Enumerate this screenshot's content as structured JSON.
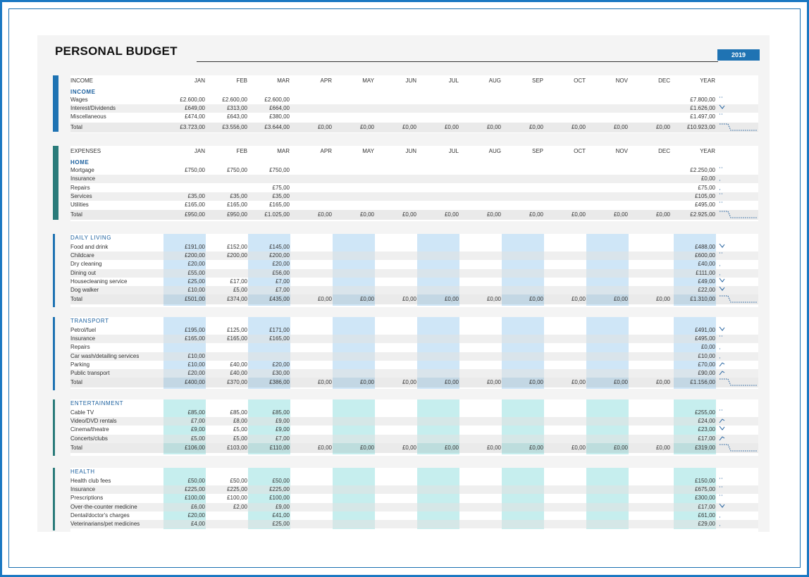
{
  "title": "PERSONAL BUDGET",
  "year_badge": "2019",
  "months": [
    "JAN",
    "FEB",
    "MAR",
    "APR",
    "MAY",
    "JUN",
    "JUL",
    "AUG",
    "SEP",
    "OCT",
    "NOV",
    "DEC"
  ],
  "year_label": "YEAR",
  "colors": {
    "income_bar": "#1f73b3",
    "expenses_bar": "#2a7b7a",
    "blue_band": "#cfe6f7",
    "blue_total": "#9fd0ef",
    "teal_band": "#c6eeee",
    "teal_total": "#8fdfdf"
  },
  "income": {
    "header": "INCOME",
    "subheader": "INCOME",
    "rows": [
      {
        "label": "Wages",
        "values": [
          "£2.600,00",
          "£2.600,00",
          "£2.600,00",
          "",
          "",
          "",
          "",
          "",
          "",
          "",
          "",
          ""
        ],
        "year": "£7.800,00"
      },
      {
        "label": "Interest/Dividends",
        "values": [
          "£649,00",
          "£313,00",
          "£664,00",
          "",
          "",
          "",
          "",
          "",
          "",
          "",
          "",
          ""
        ],
        "year": "£1.626,00"
      },
      {
        "label": "Miscellaneous",
        "values": [
          "£474,00",
          "£643,00",
          "£380,00",
          "",
          "",
          "",
          "",
          "",
          "",
          "",
          "",
          ""
        ],
        "year": "£1.497,00"
      }
    ],
    "total": {
      "label": "Total",
      "values": [
        "£3.723,00",
        "£3.556,00",
        "£3.644,00",
        "£0,00",
        "£0,00",
        "£0,00",
        "£0,00",
        "£0,00",
        "£0,00",
        "£0,00",
        "£0,00",
        "£0,00"
      ],
      "year": "£10.923,00"
    }
  },
  "expenses": {
    "header": "EXPENSES",
    "subheader": "HOME",
    "rows": [
      {
        "label": "Mortgage",
        "values": [
          "£750,00",
          "£750,00",
          "£750,00",
          "",
          "",
          "",
          "",
          "",
          "",
          "",
          "",
          ""
        ],
        "year": "£2.250,00"
      },
      {
        "label": "Insurance",
        "values": [
          "",
          "",
          "",
          "",
          "",
          "",
          "",
          "",
          "",
          "",
          "",
          ""
        ],
        "year": "£0,00"
      },
      {
        "label": "Repairs",
        "values": [
          "",
          "",
          "£75,00",
          "",
          "",
          "",
          "",
          "",
          "",
          "",
          "",
          ""
        ],
        "year": "£75,00"
      },
      {
        "label": "Services",
        "values": [
          "£35,00",
          "£35,00",
          "£35,00",
          "",
          "",
          "",
          "",
          "",
          "",
          "",
          "",
          ""
        ],
        "year": "£105,00"
      },
      {
        "label": "Utilities",
        "values": [
          "£165,00",
          "£165,00",
          "£165,00",
          "",
          "",
          "",
          "",
          "",
          "",
          "",
          "",
          ""
        ],
        "year": "£495,00"
      }
    ],
    "total": {
      "label": "Total",
      "values": [
        "£950,00",
        "£950,00",
        "£1.025,00",
        "£0,00",
        "£0,00",
        "£0,00",
        "£0,00",
        "£0,00",
        "£0,00",
        "£0,00",
        "£0,00",
        "£0,00"
      ],
      "year": "£2.925,00"
    }
  },
  "daily_living": {
    "title": "DAILY LIVING",
    "rows": [
      {
        "label": "Food and drink",
        "values": [
          "£191,00",
          "£152,00",
          "£145,00",
          "",
          "",
          "",
          "",
          "",
          "",
          "",
          "",
          ""
        ],
        "year": "£488,00"
      },
      {
        "label": "Childcare",
        "values": [
          "£200,00",
          "£200,00",
          "£200,00",
          "",
          "",
          "",
          "",
          "",
          "",
          "",
          "",
          ""
        ],
        "year": "£600,00"
      },
      {
        "label": "Dry cleaning",
        "values": [
          "£20,00",
          "",
          "£20,00",
          "",
          "",
          "",
          "",
          "",
          "",
          "",
          "",
          ""
        ],
        "year": "£40,00"
      },
      {
        "label": "Dining out",
        "values": [
          "£55,00",
          "",
          "£56,00",
          "",
          "",
          "",
          "",
          "",
          "",
          "",
          "",
          ""
        ],
        "year": "£111,00"
      },
      {
        "label": "Housecleaning service",
        "values": [
          "£25,00",
          "£17,00",
          "£7,00",
          "",
          "",
          "",
          "",
          "",
          "",
          "",
          "",
          ""
        ],
        "year": "£49,00"
      },
      {
        "label": "Dog walker",
        "values": [
          "£10,00",
          "£5,00",
          "£7,00",
          "",
          "",
          "",
          "",
          "",
          "",
          "",
          "",
          ""
        ],
        "year": "£22,00"
      }
    ],
    "total": {
      "label": "Total",
      "values": [
        "£501,00",
        "£374,00",
        "£435,00",
        "£0,00",
        "£0,00",
        "£0,00",
        "£0,00",
        "£0,00",
        "£0,00",
        "£0,00",
        "£0,00",
        "£0,00"
      ],
      "year": "£1.310,00"
    }
  },
  "transport": {
    "title": "TRANSPORT",
    "rows": [
      {
        "label": "Petrol/fuel",
        "values": [
          "£195,00",
          "£125,00",
          "£171,00",
          "",
          "",
          "",
          "",
          "",
          "",
          "",
          "",
          ""
        ],
        "year": "£491,00"
      },
      {
        "label": "Insurance",
        "values": [
          "£165,00",
          "£165,00",
          "£165,00",
          "",
          "",
          "",
          "",
          "",
          "",
          "",
          "",
          ""
        ],
        "year": "£495,00"
      },
      {
        "label": "Repairs",
        "values": [
          "",
          "",
          "",
          "",
          "",
          "",
          "",
          "",
          "",
          "",
          "",
          ""
        ],
        "year": "£0,00"
      },
      {
        "label": "Car wash/detailing services",
        "values": [
          "£10,00",
          "",
          "",
          "",
          "",
          "",
          "",
          "",
          "",
          "",
          "",
          ""
        ],
        "year": "£10,00"
      },
      {
        "label": "Parking",
        "values": [
          "£10,00",
          "£40,00",
          "£20,00",
          "",
          "",
          "",
          "",
          "",
          "",
          "",
          "",
          ""
        ],
        "year": "£70,00"
      },
      {
        "label": "Public transport",
        "values": [
          "£20,00",
          "£40,00",
          "£30,00",
          "",
          "",
          "",
          "",
          "",
          "",
          "",
          "",
          ""
        ],
        "year": "£90,00"
      }
    ],
    "total": {
      "label": "Total",
      "values": [
        "£400,00",
        "£370,00",
        "£386,00",
        "£0,00",
        "£0,00",
        "£0,00",
        "£0,00",
        "£0,00",
        "£0,00",
        "£0,00",
        "£0,00",
        "£0,00"
      ],
      "year": "£1.156,00"
    }
  },
  "entertainment": {
    "title": "ENTERTAINMENT",
    "rows": [
      {
        "label": "Cable TV",
        "values": [
          "£85,00",
          "£85,00",
          "£85,00",
          "",
          "",
          "",
          "",
          "",
          "",
          "",
          "",
          ""
        ],
        "year": "£255,00"
      },
      {
        "label": "Video/DVD rentals",
        "values": [
          "£7,00",
          "£8,00",
          "£9,00",
          "",
          "",
          "",
          "",
          "",
          "",
          "",
          "",
          ""
        ],
        "year": "£24,00"
      },
      {
        "label": "Cinema/theatre",
        "values": [
          "£9,00",
          "£5,00",
          "£9,00",
          "",
          "",
          "",
          "",
          "",
          "",
          "",
          "",
          ""
        ],
        "year": "£23,00"
      },
      {
        "label": "Concerts/clubs",
        "values": [
          "£5,00",
          "£5,00",
          "£7,00",
          "",
          "",
          "",
          "",
          "",
          "",
          "",
          "",
          ""
        ],
        "year": "£17,00"
      }
    ],
    "total": {
      "label": "Total",
      "values": [
        "£106,00",
        "£103,00",
        "£110,00",
        "£0,00",
        "£0,00",
        "£0,00",
        "£0,00",
        "£0,00",
        "£0,00",
        "£0,00",
        "£0,00",
        "£0,00"
      ],
      "year": "£319,00"
    }
  },
  "health": {
    "title": "HEALTH",
    "rows": [
      {
        "label": "Health club fees",
        "values": [
          "£50,00",
          "£50,00",
          "£50,00",
          "",
          "",
          "",
          "",
          "",
          "",
          "",
          "",
          ""
        ],
        "year": "£150,00"
      },
      {
        "label": "Insurance",
        "values": [
          "£225,00",
          "£225,00",
          "£225,00",
          "",
          "",
          "",
          "",
          "",
          "",
          "",
          "",
          ""
        ],
        "year": "£675,00"
      },
      {
        "label": "Prescriptions",
        "values": [
          "£100,00",
          "£100,00",
          "£100,00",
          "",
          "",
          "",
          "",
          "",
          "",
          "",
          "",
          ""
        ],
        "year": "£300,00"
      },
      {
        "label": "Over-the-counter medicine",
        "values": [
          "£6,00",
          "£2,00",
          "£9,00",
          "",
          "",
          "",
          "",
          "",
          "",
          "",
          "",
          ""
        ],
        "year": "£17,00"
      },
      {
        "label": "Dental/doctor's charges",
        "values": [
          "£20,00",
          "",
          "£41,00",
          "",
          "",
          "",
          "",
          "",
          "",
          "",
          "",
          ""
        ],
        "year": "£61,00"
      },
      {
        "label": "Veterinarians/pet medicines",
        "values": [
          "£4,00",
          "",
          "£25,00",
          "",
          "",
          "",
          "",
          "",
          "",
          "",
          "",
          ""
        ],
        "year": "£29,00"
      }
    ]
  }
}
